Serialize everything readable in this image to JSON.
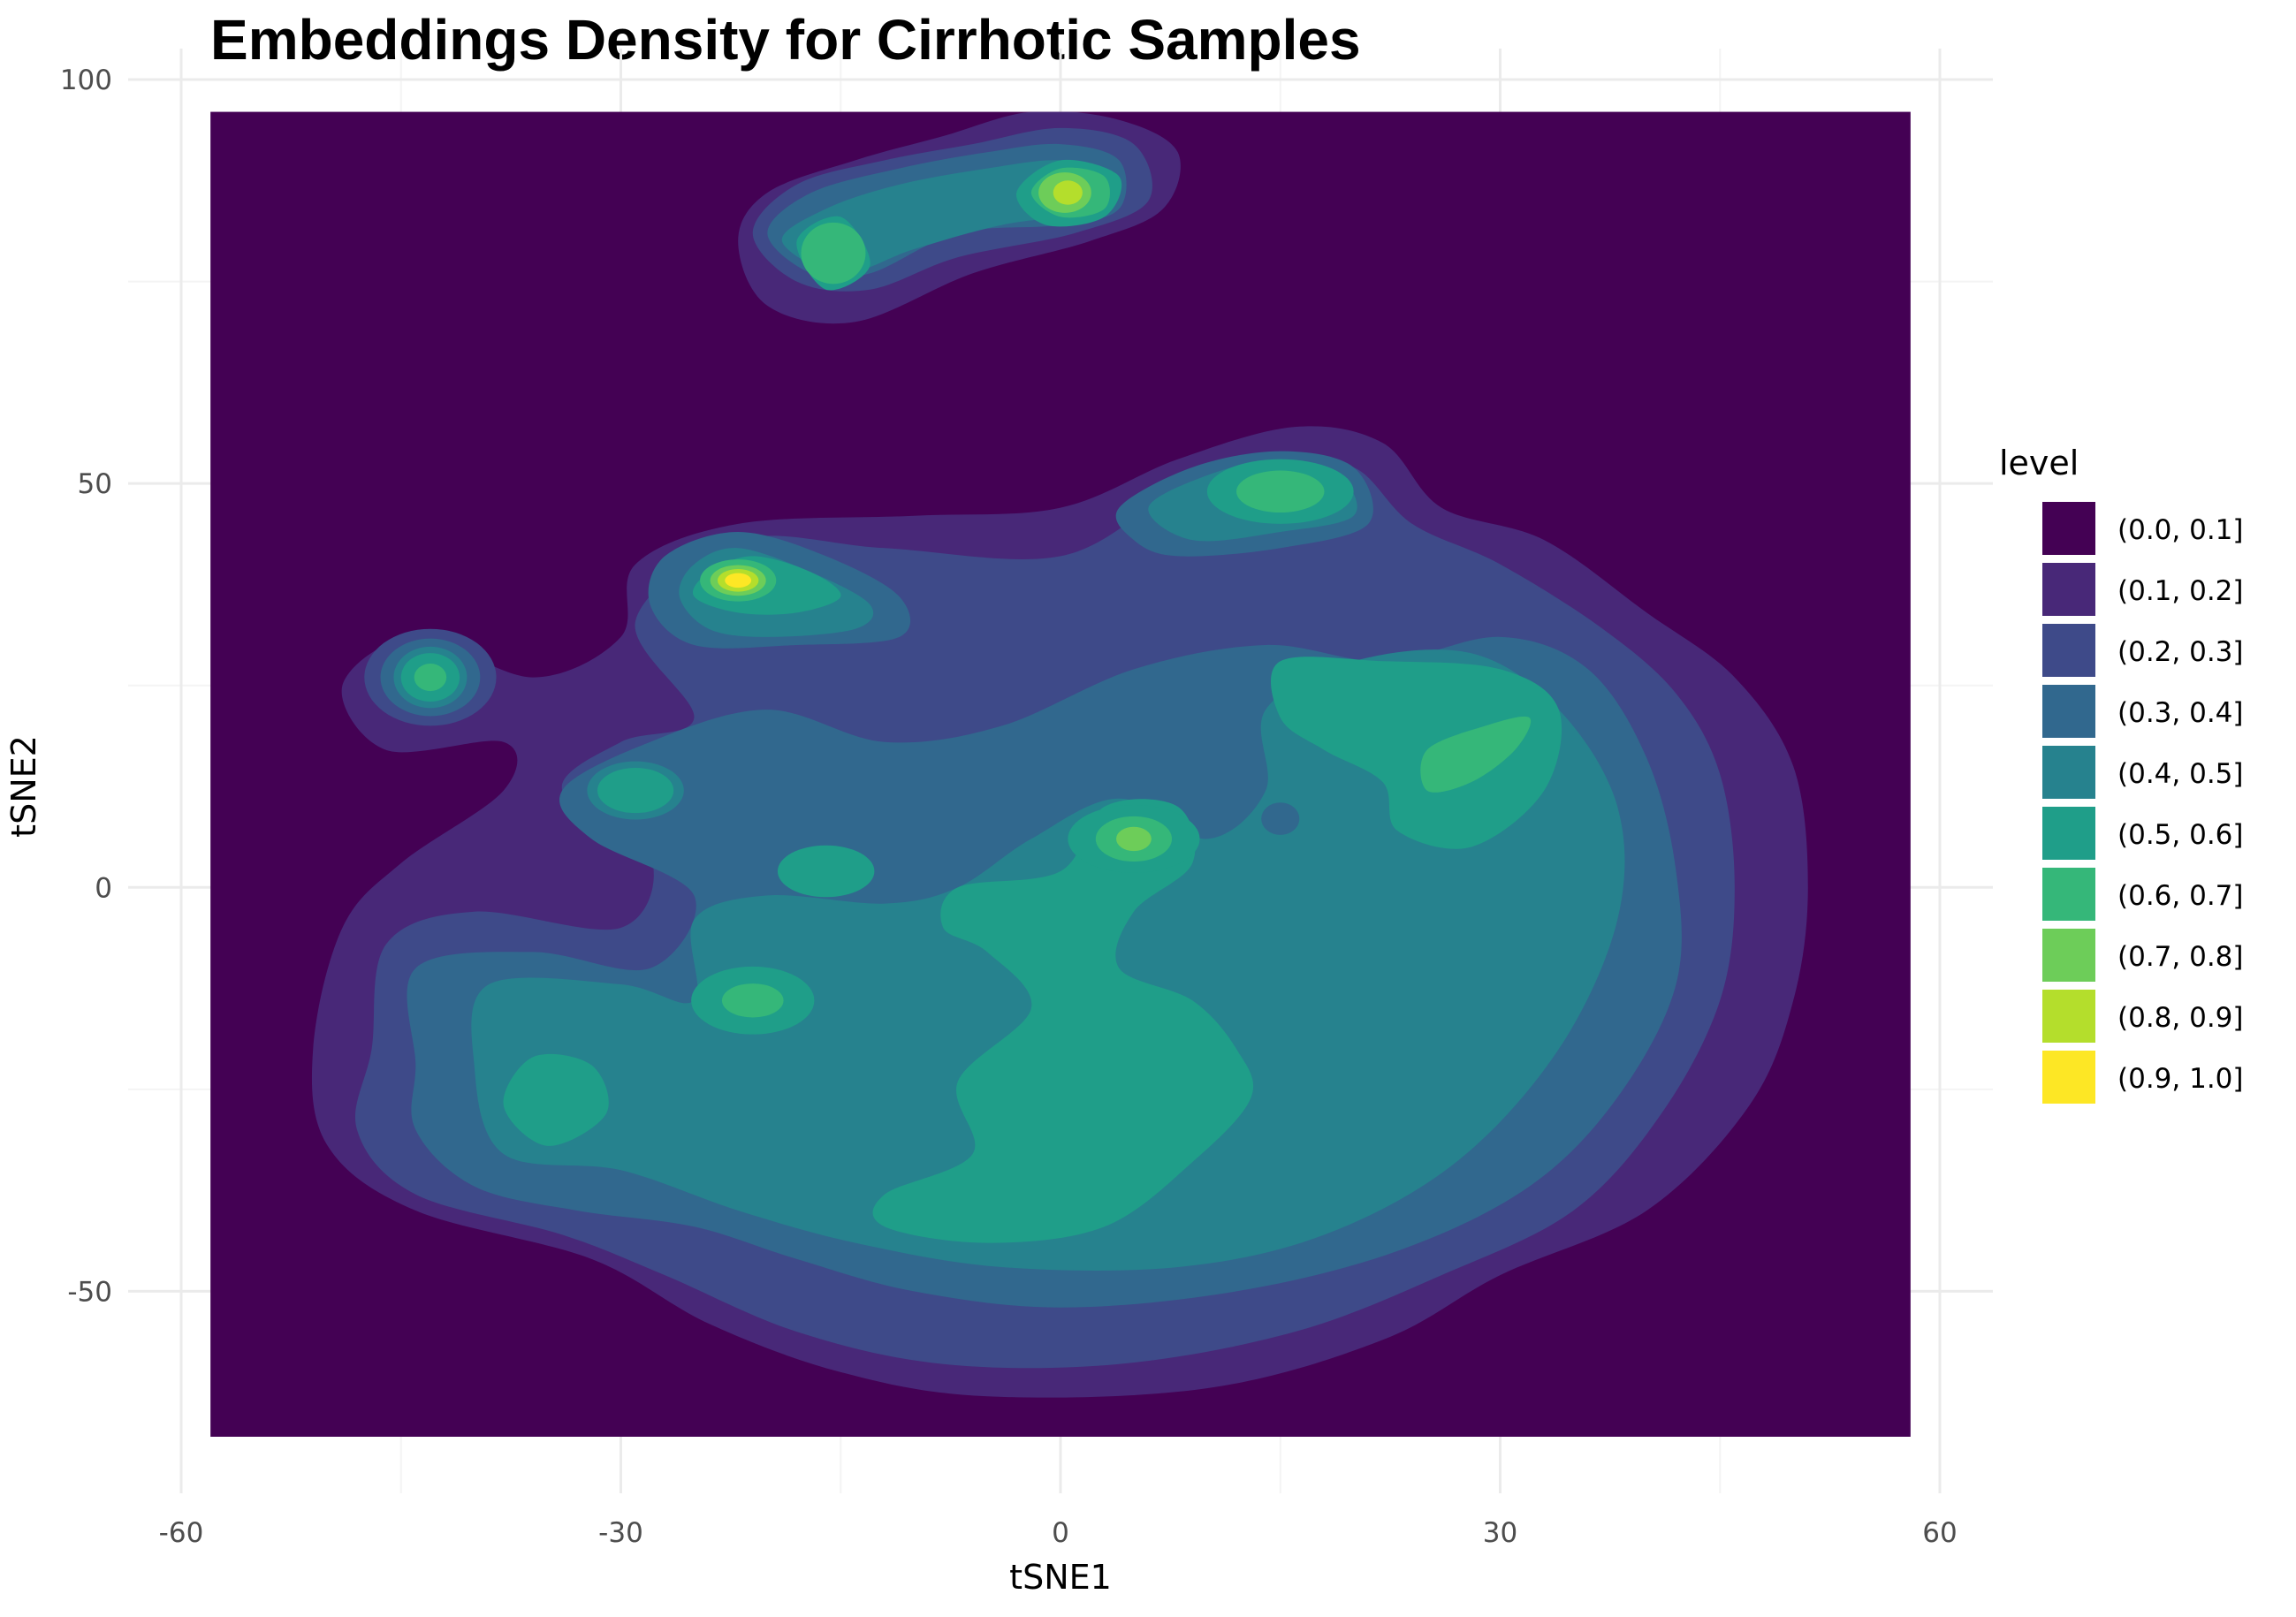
{
  "chart_data": {
    "type": "heatmap",
    "subtype": "filled-density-contour",
    "title": "Embeddings Density for Cirrhotic Samples",
    "xlabel": "tSNE1",
    "ylabel": "tSNE2",
    "xlim": [
      -60,
      60
    ],
    "ylim": [
      -75,
      100
    ],
    "x_ticks": [
      -60,
      -30,
      0,
      30,
      60
    ],
    "x_tick_labels": [
      "-60",
      "-30",
      "0",
      "30",
      "60"
    ],
    "y_ticks": [
      -50,
      0,
      50,
      100
    ],
    "y_tick_labels": [
      "-50",
      "0",
      "50",
      "100"
    ],
    "raster_extent": {
      "x": [
        -58,
        58
      ],
      "y": [
        -68,
        96
      ]
    },
    "grid": true,
    "legend": {
      "title": "level",
      "position": "right",
      "entries": [
        {
          "label": "(0.0, 0.1]",
          "color": "#440154"
        },
        {
          "label": "(0.1, 0.2]",
          "color": "#482878"
        },
        {
          "label": "(0.2, 0.3]",
          "color": "#3E4A89"
        },
        {
          "label": "(0.3, 0.4]",
          "color": "#31688E"
        },
        {
          "label": "(0.4, 0.5]",
          "color": "#26828E"
        },
        {
          "label": "(0.5, 0.6]",
          "color": "#1F9E89"
        },
        {
          "label": "(0.6, 0.7]",
          "color": "#35B779"
        },
        {
          "label": "(0.7, 0.8]",
          "color": "#6DCD59"
        },
        {
          "label": "(0.8, 0.9]",
          "color": "#B4DE2C"
        },
        {
          "label": "(0.9, 1.0]",
          "color": "#FDE725"
        }
      ]
    },
    "density_peaks": [
      {
        "x": -22,
        "y": 38,
        "level": 0.95
      },
      {
        "x": 0,
        "y": 86,
        "level": 0.85
      },
      {
        "x": -15,
        "y": 78,
        "level": 0.65
      },
      {
        "x": 15,
        "y": 49,
        "level": 0.65
      },
      {
        "x": -43,
        "y": 26,
        "level": 0.65
      },
      {
        "x": 5,
        "y": 6,
        "level": 0.7
      },
      {
        "x": 27,
        "y": 15,
        "level": 0.65
      },
      {
        "x": 32,
        "y": 20,
        "level": 0.6
      },
      {
        "x": -38,
        "y": -27,
        "level": 0.6
      },
      {
        "x": -21,
        "y": -14,
        "level": 0.6
      },
      {
        "x": -29,
        "y": 12,
        "level": 0.55
      },
      {
        "x": -16,
        "y": 2,
        "level": 0.55
      },
      {
        "x": 2,
        "y": -25,
        "level": 0.55
      },
      {
        "x": 5,
        "y": -42,
        "level": 0.55
      },
      {
        "x": 25,
        "y": 24,
        "level": 0.55
      }
    ]
  }
}
